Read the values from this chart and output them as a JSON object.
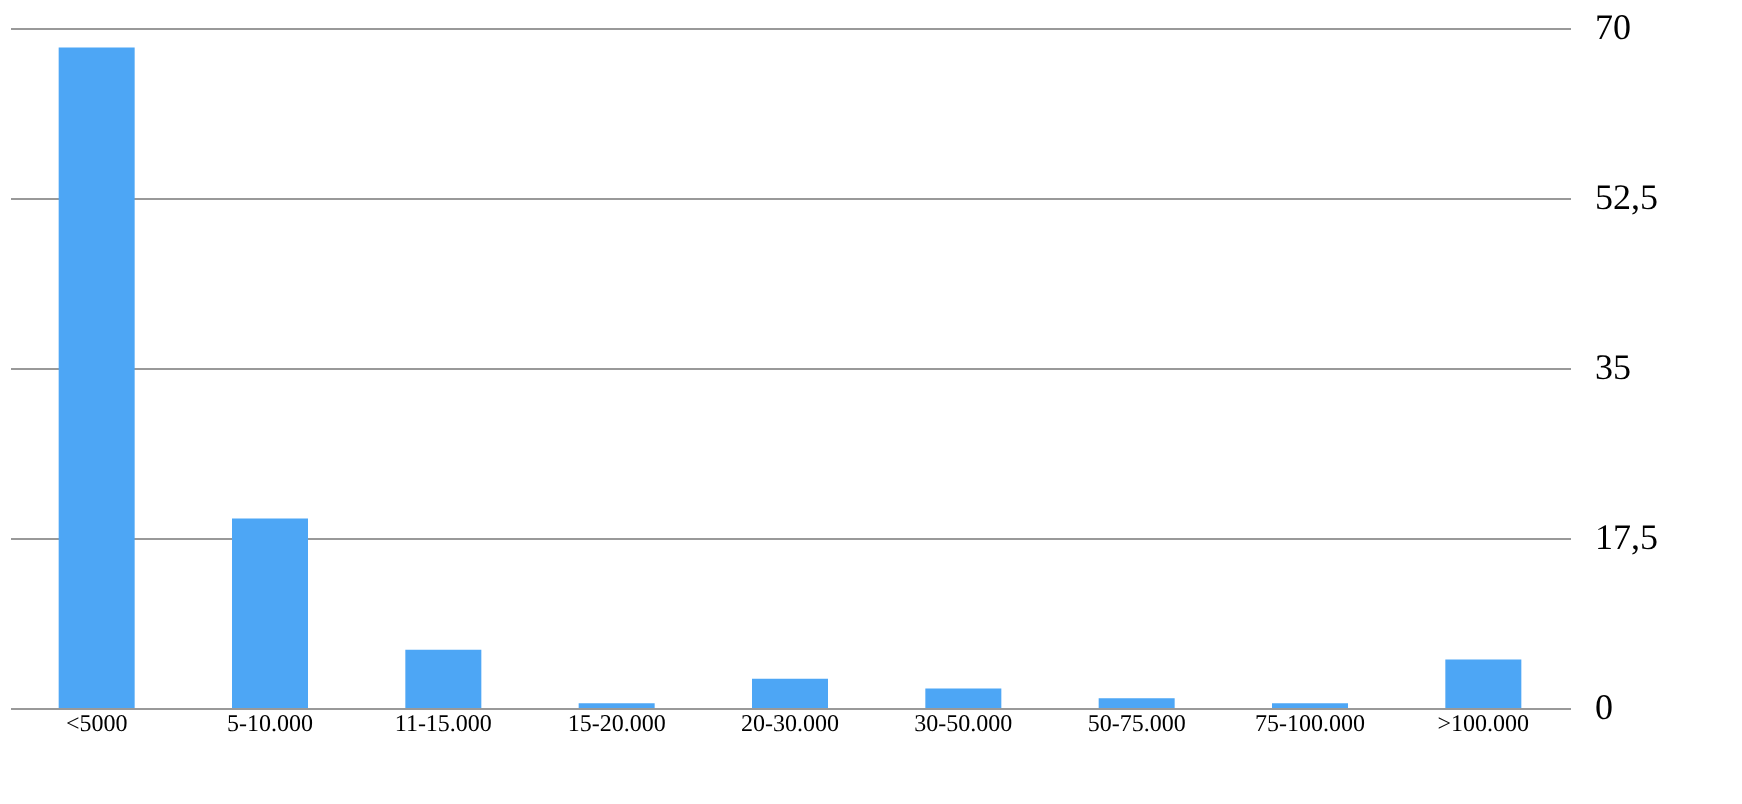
{
  "chart_data": {
    "type": "bar",
    "categories": [
      "<5000",
      "5-10.000",
      "11-15.000",
      "15-20.000",
      "20-30.000",
      "30-50.000",
      "50-75.000",
      "75-100.000",
      ">100.000"
    ],
    "values": [
      68,
      19.5,
      6,
      0.5,
      3,
      2,
      1,
      0.5,
      5
    ],
    "color": "#4da6f5",
    "ylim": [
      0,
      70
    ],
    "yticks": [
      0,
      {
        "value": 17.5,
        "label": "17,5"
      },
      35,
      {
        "value": 52.5,
        "label": "52,5"
      },
      70
    ],
    "grid": "y"
  }
}
